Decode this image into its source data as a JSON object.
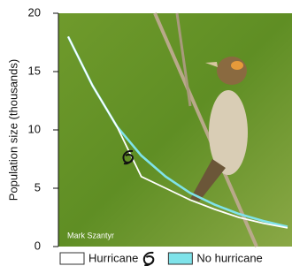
{
  "chart_data": {
    "type": "line",
    "ylabel": "Population size (thousands)",
    "credit": "Mark Szantyr",
    "categories": [
      null,
      null,
      null,
      null,
      null,
      null,
      null,
      null,
      null,
      null
    ],
    "series": [
      {
        "name": "Hurricane",
        "color": "#ffffff",
        "values": [
          18,
          13.8,
          10.3,
          6.0,
          5.0,
          4.0,
          3.2,
          2.5,
          2.0,
          1.6
        ]
      },
      {
        "name": "No hurricane",
        "color": "#7fe3ea",
        "values": [
          18,
          13.8,
          10.3,
          7.8,
          6.0,
          4.6,
          3.6,
          2.8,
          2.2,
          1.7
        ]
      }
    ],
    "ylim": [
      0,
      20
    ],
    "yticks": [
      0,
      5,
      10,
      15,
      20
    ]
  }
}
